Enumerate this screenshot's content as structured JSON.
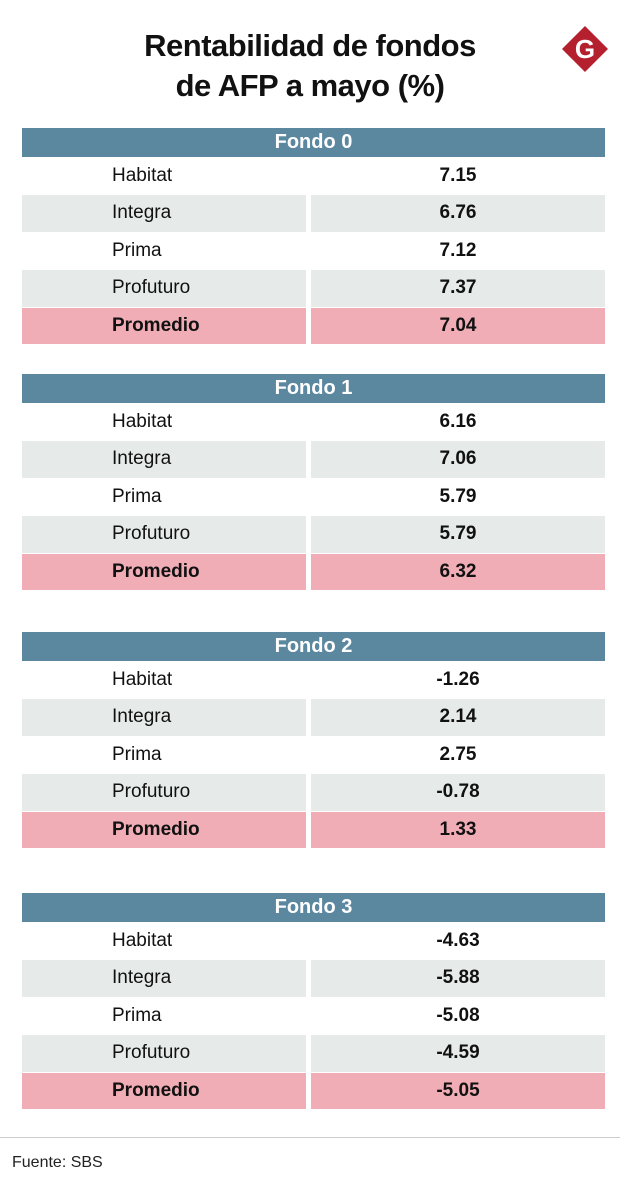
{
  "title_line1": "Rentabilidad de fondos",
  "title_line2": "de AFP a mayo (%)",
  "logo_letter": "G",
  "colors": {
    "header": "#5b879f",
    "alt_row": "#e6ebea",
    "average_row": "#f0adb5",
    "logo": "#b5202e"
  },
  "source": "Fuente: SBS",
  "chart_data": {
    "type": "table",
    "title": "Rentabilidad de fondos de AFP a mayo (%)",
    "sections": [
      {
        "name": "Fondo 0",
        "rows": [
          {
            "label": "Habitat",
            "value": "7.15"
          },
          {
            "label": "Integra",
            "value": "6.76"
          },
          {
            "label": "Prima",
            "value": "7.12"
          },
          {
            "label": "Profuturo",
            "value": "7.37"
          },
          {
            "label": "Promedio",
            "value": "7.04"
          }
        ]
      },
      {
        "name": "Fondo 1",
        "rows": [
          {
            "label": "Habitat",
            "value": "6.16"
          },
          {
            "label": "Integra",
            "value": "7.06"
          },
          {
            "label": "Prima",
            "value": "5.79"
          },
          {
            "label": "Profuturo",
            "value": "5.79"
          },
          {
            "label": "Promedio",
            "value": "6.32"
          }
        ]
      },
      {
        "name": "Fondo 2",
        "rows": [
          {
            "label": "Habitat",
            "value": "-1.26"
          },
          {
            "label": "Integra",
            "value": "2.14"
          },
          {
            "label": "Prima",
            "value": "2.75"
          },
          {
            "label": "Profuturo",
            "value": "-0.78"
          },
          {
            "label": "Promedio",
            "value": "1.33"
          }
        ]
      },
      {
        "name": "Fondo 3",
        "rows": [
          {
            "label": "Habitat",
            "value": "-4.63"
          },
          {
            "label": "Integra",
            "value": "-5.88"
          },
          {
            "label": "Prima",
            "value": "-5.08"
          },
          {
            "label": "Profuturo",
            "value": "-4.59"
          },
          {
            "label": "Promedio",
            "value": "-5.05"
          }
        ]
      }
    ]
  }
}
